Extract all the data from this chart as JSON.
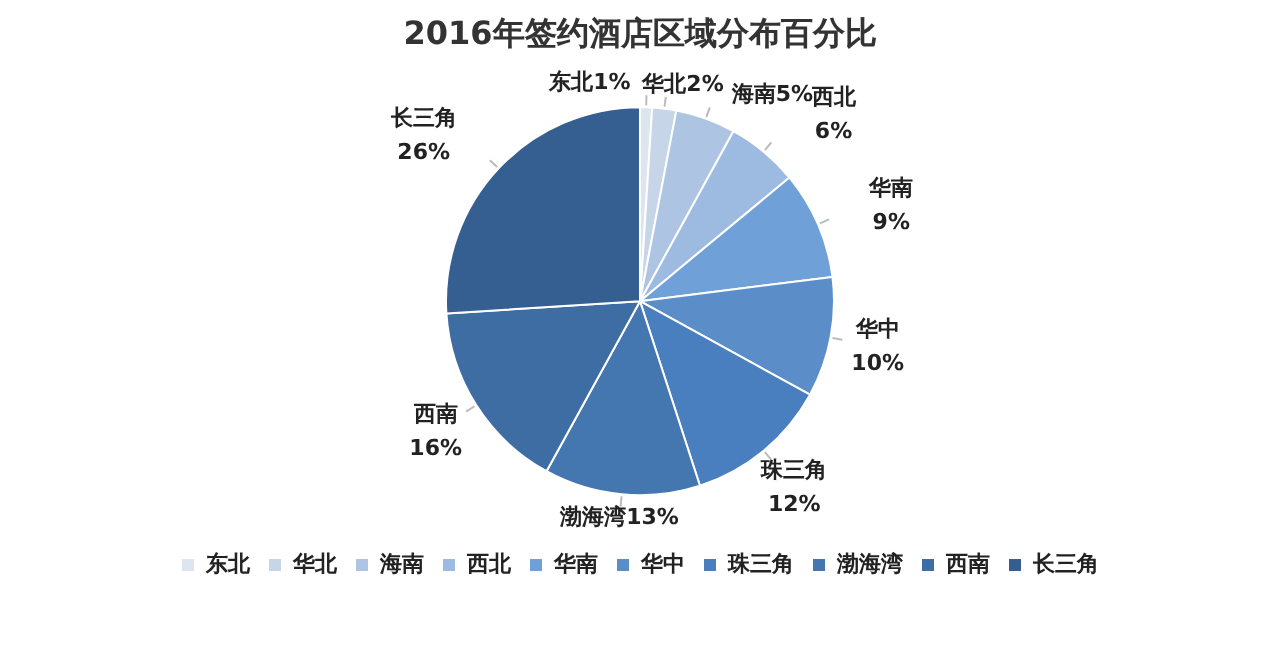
{
  "chart_data": {
    "type": "pie",
    "title": "2016年签约酒店区域分布百分比",
    "categories": [
      "东北",
      "华北",
      "海南",
      "西北",
      "华南",
      "华中",
      "珠三角",
      "渤海湾",
      "西南",
      "长三角"
    ],
    "values": [
      1,
      2,
      5,
      6,
      9,
      10,
      12,
      13,
      16,
      26
    ],
    "colors": [
      "#dde6f0",
      "#c7d5e8",
      "#adc5e3",
      "#9dbbe0",
      "#6fa0d8",
      "#5b8ec9",
      "#4a7fbf",
      "#4476b0",
      "#3d6da3",
      "#355f90"
    ],
    "value_labels": [
      "1%",
      "2%",
      "5%",
      "6%",
      "9%",
      "10%",
      "12%",
      "13%",
      "16%",
      "26%"
    ],
    "legend": "bottom"
  }
}
